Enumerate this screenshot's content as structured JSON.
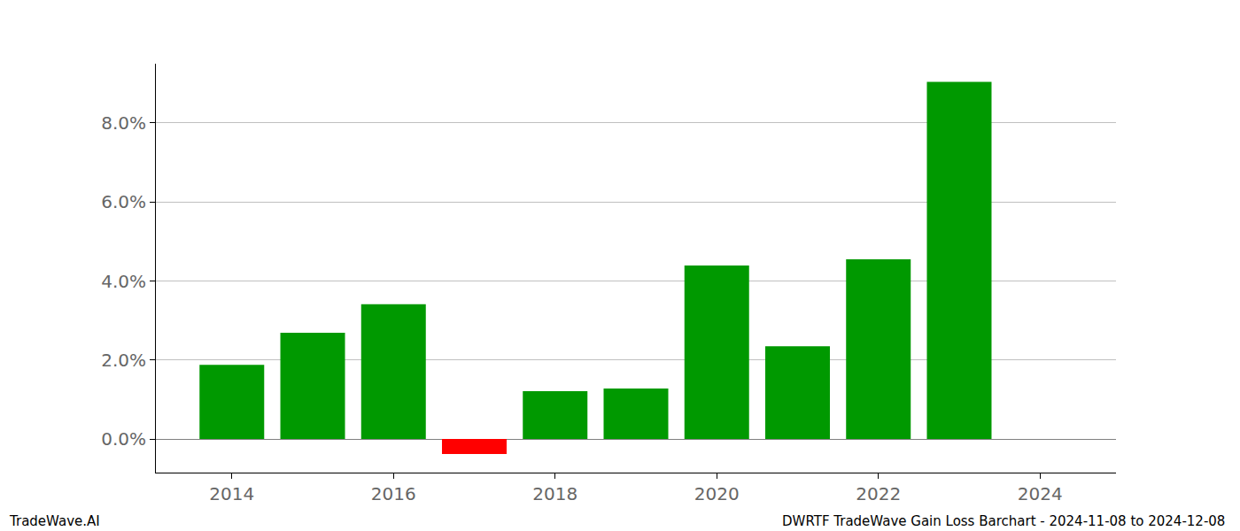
{
  "chart_data": {
    "type": "bar",
    "title": "DWRTF TradeWave Gain Loss Barchart - 2024-11-08 to 2024-12-08",
    "annotations": [
      "TradeWave.AI"
    ],
    "x": [
      2014,
      2015,
      2016,
      2017,
      2018,
      2019,
      2020,
      2021,
      2022,
      2023,
      2024
    ],
    "values": [
      1.88,
      2.69,
      3.41,
      -0.38,
      1.21,
      1.28,
      4.39,
      2.35,
      4.55,
      9.04,
      0
    ],
    "colors": [
      "#009900",
      "#009900",
      "#009900",
      "#ff0000",
      "#009900",
      "#009900",
      "#009900",
      "#009900",
      "#009900",
      "#009900",
      "#009900"
    ],
    "xlim": [
      2013.06,
      2024.94
    ],
    "xticks": [
      2014,
      2016,
      2018,
      2020,
      2022,
      2024
    ],
    "ylim": [
      -0.85,
      9.5
    ],
    "yticks": [
      {
        "value": 0,
        "label": "0.0%"
      },
      {
        "value": 2,
        "label": "2.0%"
      },
      {
        "value": 4,
        "label": "4.0%"
      },
      {
        "value": 6,
        "label": "6.0%"
      },
      {
        "value": 8,
        "label": "8.0%"
      }
    ],
    "grid": true
  }
}
